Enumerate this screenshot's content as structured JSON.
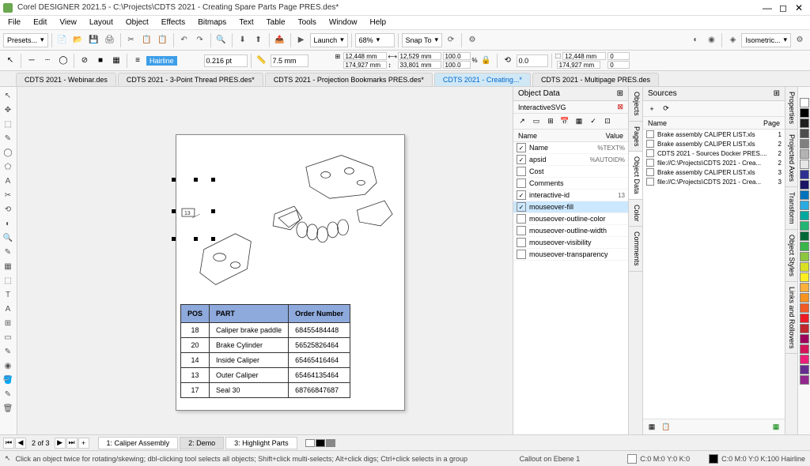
{
  "title": "Corel DESIGNER 2021.5 - C:\\Projects\\CDTS 2021 - Creating Spare Parts Page PRES.des*",
  "menu": [
    "File",
    "Edit",
    "View",
    "Layout",
    "Object",
    "Effects",
    "Bitmaps",
    "Text",
    "Table",
    "Tools",
    "Window",
    "Help"
  ],
  "toolbar": {
    "presets": "Presets...",
    "launch": "Launch",
    "zoom": "68%",
    "snap": "Snap To",
    "projection": "Isometric..."
  },
  "propbar": {
    "hairline": "Hairline",
    "pt": "0.216 pt",
    "mm": "7.5 mm",
    "x": "12,448 mm",
    "y": "174,927 mm",
    "w": "12,529 mm",
    "h": "33,801 mm",
    "sx": "100.0",
    "sy": "100.0",
    "rot": "0.0",
    "dimx": "12,448 mm",
    "dimy": "174,927 mm",
    "offx": "0",
    "offy": "0"
  },
  "docTabs": [
    {
      "label": "CDTS 2021 - Webinar.des",
      "active": false
    },
    {
      "label": "CDTS 2021 - 3-Point Thread PRES.des*",
      "active": false
    },
    {
      "label": "CDTS 2021 - Projection Bookmarks PRES.des*",
      "active": false
    },
    {
      "label": "CDTS 2021 - Creating...*",
      "active": true
    },
    {
      "label": "CDTS 2021 - Multipage PRES.des",
      "active": false
    }
  ],
  "tools": [
    "↖",
    "✥",
    "⬚",
    "✎",
    "◯",
    "⬠",
    "A",
    "✂",
    "⟲",
    "◐",
    "🔍",
    "✎",
    "▦",
    "⬚",
    "T",
    "A",
    "⊞",
    "▭",
    "✎",
    "◉",
    "🪣",
    "✎",
    "🗑"
  ],
  "partsTable": {
    "headers": [
      "POS",
      "PART",
      "Order Number"
    ],
    "rows": [
      [
        "18",
        "Caliper brake paddle",
        "68455484448"
      ],
      [
        "20",
        "Brake Cylinder",
        "56525826464"
      ],
      [
        "14",
        "Inside Caliper",
        "65465416464"
      ],
      [
        "13",
        "Outer Caliper",
        "65464135464"
      ],
      [
        "17",
        "Seal 30",
        "68766847687"
      ]
    ]
  },
  "objectData": {
    "title": "Object Data",
    "subtitle": "InteractiveSVG",
    "nameCol": "Name",
    "valueCol": "Value",
    "rows": [
      {
        "checked": true,
        "name": "Name",
        "value": "%TEXT%"
      },
      {
        "checked": true,
        "name": "apsid",
        "value": "%AUTOID%"
      },
      {
        "checked": false,
        "name": "Cost",
        "value": ""
      },
      {
        "checked": false,
        "name": "Comments",
        "value": ""
      },
      {
        "checked": true,
        "name": "interactive-id",
        "value": "13"
      },
      {
        "checked": true,
        "name": "mouseover-fill",
        "value": "",
        "selected": true
      },
      {
        "checked": false,
        "name": "mouseover-outline-color",
        "value": ""
      },
      {
        "checked": false,
        "name": "mouseover-outline-width",
        "value": ""
      },
      {
        "checked": false,
        "name": "mouseover-visibility",
        "value": ""
      },
      {
        "checked": false,
        "name": "mouseover-transparency",
        "value": ""
      }
    ]
  },
  "sources": {
    "title": "Sources",
    "nameCol": "Name",
    "pageCol": "Page",
    "rows": [
      {
        "name": "Brake assembly CALIPER LIST.xls",
        "page": "1"
      },
      {
        "name": "Brake assembly CALIPER LIST.xls",
        "page": "2"
      },
      {
        "name": "CDTS 2021 - Sources Docker PRES....",
        "page": "2"
      },
      {
        "name": "file://C:\\Projects\\CDTS 2021 - Crea...",
        "page": "2"
      },
      {
        "name": "Brake assembly CALIPER LIST.xls",
        "page": "3"
      },
      {
        "name": "file://C:\\Projects\\CDTS 2021 - Crea...",
        "page": "3"
      }
    ]
  },
  "rightTabs": [
    "Objects",
    "Pages",
    "Object Data",
    "Color",
    "Comments"
  ],
  "farRightTabs": [
    "Properties",
    "Projected Axes",
    "Transform",
    "Object Styles",
    "Links and Rollovers"
  ],
  "palette": [
    "#ffffff",
    "#000000",
    "#1f1f1f",
    "#4d4d4d",
    "#808080",
    "#b3b3b3",
    "#e6e6e6",
    "#2e3192",
    "#1b1464",
    "#0071bc",
    "#29abe2",
    "#00a99d",
    "#22b573",
    "#006837",
    "#39b54a",
    "#8cc63f",
    "#d9e021",
    "#fcee21",
    "#fbb03b",
    "#f7931e",
    "#f15a24",
    "#ed1c24",
    "#c1272d",
    "#9e005d",
    "#d4145a",
    "#ed1e79",
    "#662d91",
    "#93278f"
  ],
  "pages": {
    "current": "2",
    "total": "3",
    "tabs": [
      {
        "label": "1: Caliper Assembly",
        "active": false
      },
      {
        "label": "2: Demo",
        "active": true
      },
      {
        "label": "3: Highlight Parts",
        "active": false
      }
    ]
  },
  "status": {
    "hint": "Click an object twice for rotating/skewing; dbl-clicking tool selects all objects; Shift+click multi-selects; Alt+click digs; Ctrl+click selects in a group",
    "object": "Callout on Ebene 1",
    "fill": "C:0 M:0 Y:0 K:0",
    "outline": "C:0 M:0 Y:0 K:100 Hairline"
  }
}
